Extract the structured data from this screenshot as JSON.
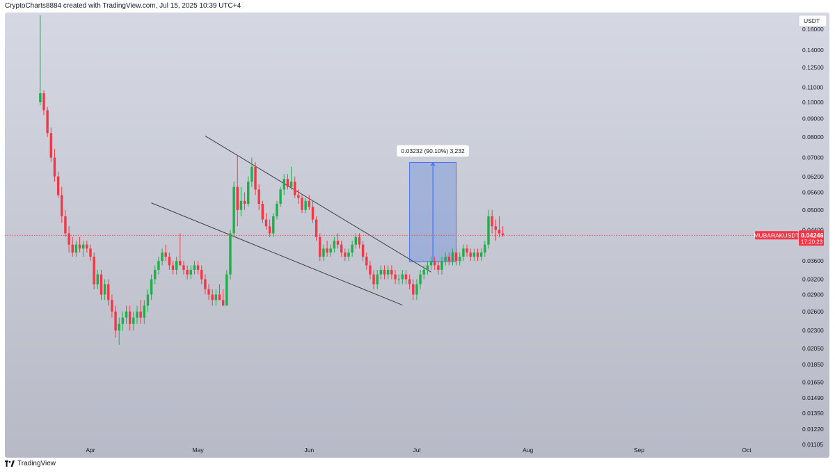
{
  "header": {
    "attribution": "CryptoCharts8884 created with TradingView.com, Jul 15, 2025 10:39 UTC+4"
  },
  "footer": {
    "logo_text": "TradingView"
  },
  "colors": {
    "up": "#26a69a",
    "up_bright": "#1fae4a",
    "down": "#ef3946",
    "price_line": "#f23645",
    "measure_fill": "#3d6fe0",
    "measure_stroke": "#2962ff",
    "trendline": "#3b3d45"
  },
  "chart_data": {
    "type": "candlestick",
    "symbol": "MUBARAKUSDT",
    "currency_label": "USDT",
    "scale": "log",
    "ylim": [
      0.0109,
      0.175
    ],
    "y_ticks": [
      "0.16000",
      "0.14000",
      "0.12500",
      "0.11000",
      "0.10000",
      "0.09000",
      "0.08000",
      "0.07000",
      "0.06200",
      "0.05600",
      "0.05000",
      "0.04400",
      "0.03600",
      "0.03200",
      "0.02900",
      "0.02600",
      "0.02300",
      "0.02050",
      "0.01850",
      "0.01650",
      "0.01490",
      "0.01350",
      "0.01220",
      "0.01105"
    ],
    "x_ticks": [
      {
        "label": "Apr",
        "date": "2025-04-01"
      },
      {
        "label": "May",
        "date": "2025-05-01"
      },
      {
        "label": "Jun",
        "date": "2025-06-01"
      },
      {
        "label": "Jul",
        "date": "2025-07-01"
      },
      {
        "label": "Aug",
        "date": "2025-08-01"
      },
      {
        "label": "Sep",
        "date": "2025-09-01"
      },
      {
        "label": "Oct",
        "date": "2025-10-01"
      }
    ],
    "first_date": "2025-03-18",
    "last_price": "0.04246",
    "countdown": "17:20:23",
    "measure_label": "0.03232 (90.10%) 3,232",
    "measure": {
      "from_date": "2025-06-29",
      "to_date": "2025-07-12",
      "low": 0.0358,
      "high": 0.0679
    },
    "trendlines": [
      {
        "from_date": "2025-05-03",
        "from_price": 0.0805,
        "to_date": "2025-07-05",
        "to_price": 0.0335
      },
      {
        "from_date": "2025-04-18",
        "from_price": 0.0523,
        "to_date": "2025-06-27",
        "to_price": 0.0271
      }
    ],
    "ohlc": [
      [
        0.1,
        0.175,
        0.098,
        0.106
      ],
      [
        0.106,
        0.108,
        0.092,
        0.095
      ],
      [
        0.095,
        0.097,
        0.08,
        0.082
      ],
      [
        0.082,
        0.085,
        0.068,
        0.07
      ],
      [
        0.07,
        0.074,
        0.06,
        0.062
      ],
      [
        0.062,
        0.064,
        0.054,
        0.055
      ],
      [
        0.055,
        0.058,
        0.046,
        0.048
      ],
      [
        0.048,
        0.05,
        0.042,
        0.043
      ],
      [
        0.043,
        0.045,
        0.038,
        0.04
      ],
      [
        0.04,
        0.042,
        0.037,
        0.038
      ],
      [
        0.038,
        0.041,
        0.037,
        0.04
      ],
      [
        0.04,
        0.042,
        0.038,
        0.039
      ],
      [
        0.039,
        0.041,
        0.037,
        0.04
      ],
      [
        0.04,
        0.041,
        0.038,
        0.039
      ],
      [
        0.039,
        0.04,
        0.036,
        0.037
      ],
      [
        0.037,
        0.038,
        0.03,
        0.031
      ],
      [
        0.031,
        0.034,
        0.03,
        0.033
      ],
      [
        0.033,
        0.034,
        0.028,
        0.029
      ],
      [
        0.029,
        0.032,
        0.028,
        0.031
      ],
      [
        0.031,
        0.032,
        0.027,
        0.028
      ],
      [
        0.028,
        0.029,
        0.025,
        0.026
      ],
      [
        0.026,
        0.027,
        0.022,
        0.023
      ],
      [
        0.023,
        0.025,
        0.021,
        0.024
      ],
      [
        0.024,
        0.026,
        0.023,
        0.025
      ],
      [
        0.025,
        0.027,
        0.024,
        0.026
      ],
      [
        0.026,
        0.027,
        0.023,
        0.024
      ],
      [
        0.024,
        0.026,
        0.023,
        0.025
      ],
      [
        0.025,
        0.027,
        0.024,
        0.026
      ],
      [
        0.026,
        0.028,
        0.024,
        0.025
      ],
      [
        0.025,
        0.028,
        0.024,
        0.027
      ],
      [
        0.027,
        0.03,
        0.026,
        0.029
      ],
      [
        0.029,
        0.033,
        0.028,
        0.032
      ],
      [
        0.032,
        0.035,
        0.031,
        0.034
      ],
      [
        0.034,
        0.037,
        0.033,
        0.036
      ],
      [
        0.036,
        0.039,
        0.035,
        0.038
      ],
      [
        0.038,
        0.04,
        0.036,
        0.037
      ],
      [
        0.037,
        0.038,
        0.034,
        0.035
      ],
      [
        0.035,
        0.036,
        0.033,
        0.034
      ],
      [
        0.034,
        0.037,
        0.033,
        0.036
      ],
      [
        0.036,
        0.043,
        0.035,
        0.035
      ],
      [
        0.035,
        0.036,
        0.033,
        0.034
      ],
      [
        0.034,
        0.035,
        0.032,
        0.033
      ],
      [
        0.033,
        0.035,
        0.032,
        0.034
      ],
      [
        0.034,
        0.036,
        0.033,
        0.035
      ],
      [
        0.035,
        0.036,
        0.033,
        0.034
      ],
      [
        0.034,
        0.035,
        0.031,
        0.032
      ],
      [
        0.032,
        0.033,
        0.029,
        0.03
      ],
      [
        0.03,
        0.031,
        0.028,
        0.029
      ],
      [
        0.029,
        0.03,
        0.027,
        0.028
      ],
      [
        0.028,
        0.03,
        0.027,
        0.029
      ],
      [
        0.029,
        0.031,
        0.028,
        0.028
      ],
      [
        0.028,
        0.03,
        0.027,
        0.027
      ],
      [
        0.027,
        0.034,
        0.027,
        0.033
      ],
      [
        0.033,
        0.044,
        0.032,
        0.043
      ],
      [
        0.043,
        0.06,
        0.042,
        0.058
      ],
      [
        0.058,
        0.071,
        0.045,
        0.05
      ],
      [
        0.05,
        0.058,
        0.048,
        0.053
      ],
      [
        0.053,
        0.056,
        0.05,
        0.052
      ],
      [
        0.052,
        0.062,
        0.051,
        0.06
      ],
      [
        0.06,
        0.07,
        0.058,
        0.066
      ],
      [
        0.066,
        0.068,
        0.055,
        0.057
      ],
      [
        0.057,
        0.059,
        0.05,
        0.052
      ],
      [
        0.052,
        0.053,
        0.046,
        0.047
      ],
      [
        0.047,
        0.049,
        0.044,
        0.045
      ],
      [
        0.045,
        0.047,
        0.042,
        0.043
      ],
      [
        0.043,
        0.049,
        0.042,
        0.048
      ],
      [
        0.048,
        0.053,
        0.047,
        0.052
      ],
      [
        0.052,
        0.058,
        0.051,
        0.057
      ],
      [
        0.057,
        0.063,
        0.055,
        0.061
      ],
      [
        0.061,
        0.063,
        0.057,
        0.058
      ],
      [
        0.058,
        0.066,
        0.057,
        0.06
      ],
      [
        0.06,
        0.062,
        0.054,
        0.055
      ],
      [
        0.055,
        0.057,
        0.052,
        0.054
      ],
      [
        0.054,
        0.055,
        0.049,
        0.05
      ],
      [
        0.05,
        0.054,
        0.049,
        0.053
      ],
      [
        0.053,
        0.055,
        0.05,
        0.051
      ],
      [
        0.051,
        0.053,
        0.046,
        0.047
      ],
      [
        0.047,
        0.048,
        0.041,
        0.042
      ],
      [
        0.042,
        0.043,
        0.036,
        0.037
      ],
      [
        0.037,
        0.04,
        0.036,
        0.039
      ],
      [
        0.039,
        0.041,
        0.037,
        0.038
      ],
      [
        0.038,
        0.04,
        0.037,
        0.039
      ],
      [
        0.039,
        0.042,
        0.038,
        0.041
      ],
      [
        0.041,
        0.043,
        0.039,
        0.04
      ],
      [
        0.04,
        0.041,
        0.037,
        0.038
      ],
      [
        0.038,
        0.039,
        0.036,
        0.037
      ],
      [
        0.037,
        0.039,
        0.036,
        0.038
      ],
      [
        0.038,
        0.041,
        0.037,
        0.04
      ],
      [
        0.04,
        0.043,
        0.039,
        0.042
      ],
      [
        0.042,
        0.043,
        0.039,
        0.04
      ],
      [
        0.04,
        0.041,
        0.036,
        0.037
      ],
      [
        0.037,
        0.038,
        0.034,
        0.035
      ],
      [
        0.035,
        0.036,
        0.032,
        0.033
      ],
      [
        0.033,
        0.034,
        0.03,
        0.031
      ],
      [
        0.031,
        0.034,
        0.03,
        0.033
      ],
      [
        0.033,
        0.035,
        0.032,
        0.034
      ],
      [
        0.034,
        0.035,
        0.032,
        0.033
      ],
      [
        0.033,
        0.035,
        0.032,
        0.034
      ],
      [
        0.034,
        0.035,
        0.032,
        0.033
      ],
      [
        0.033,
        0.034,
        0.031,
        0.032
      ],
      [
        0.032,
        0.033,
        0.031,
        0.032
      ],
      [
        0.032,
        0.034,
        0.031,
        0.033
      ],
      [
        0.033,
        0.034,
        0.031,
        0.032
      ],
      [
        0.032,
        0.033,
        0.03,
        0.031
      ],
      [
        0.031,
        0.032,
        0.028,
        0.029
      ],
      [
        0.029,
        0.032,
        0.028,
        0.031
      ],
      [
        0.031,
        0.034,
        0.03,
        0.033
      ],
      [
        0.033,
        0.035,
        0.032,
        0.034
      ],
      [
        0.034,
        0.036,
        0.033,
        0.035
      ],
      [
        0.035,
        0.037,
        0.034,
        0.036
      ],
      [
        0.036,
        0.037,
        0.034,
        0.035
      ],
      [
        0.035,
        0.036,
        0.033,
        0.034
      ],
      [
        0.034,
        0.037,
        0.033,
        0.036
      ],
      [
        0.036,
        0.038,
        0.035,
        0.037
      ],
      [
        0.037,
        0.038,
        0.035,
        0.036
      ],
      [
        0.036,
        0.039,
        0.035,
        0.038
      ],
      [
        0.038,
        0.039,
        0.035,
        0.036
      ],
      [
        0.036,
        0.038,
        0.035,
        0.037
      ],
      [
        0.037,
        0.04,
        0.036,
        0.039
      ],
      [
        0.039,
        0.04,
        0.037,
        0.038
      ],
      [
        0.038,
        0.039,
        0.036,
        0.037
      ],
      [
        0.037,
        0.039,
        0.036,
        0.038
      ],
      [
        0.038,
        0.039,
        0.036,
        0.037
      ],
      [
        0.037,
        0.039,
        0.036,
        0.038
      ],
      [
        0.038,
        0.041,
        0.037,
        0.04
      ],
      [
        0.04,
        0.05,
        0.039,
        0.048
      ],
      [
        0.048,
        0.05,
        0.043,
        0.045
      ],
      [
        0.045,
        0.047,
        0.041,
        0.044
      ],
      [
        0.044,
        0.048,
        0.042,
        0.043
      ],
      [
        0.043,
        0.045,
        0.042,
        0.0425
      ]
    ]
  }
}
